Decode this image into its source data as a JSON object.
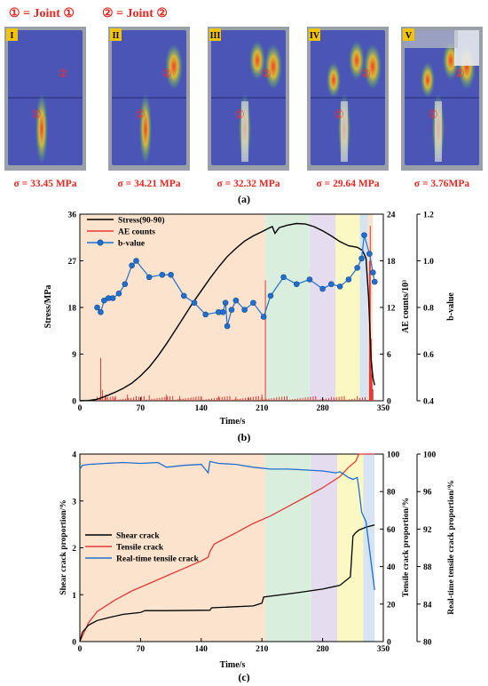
{
  "panel_a": {
    "legend": {
      "joint1": "① = Joint ①",
      "joint2": "② = Joint ②"
    },
    "label": "(a)",
    "photos": [
      {
        "roman": "I",
        "stress": "σ = 33.45 MPa",
        "cracks": 1
      },
      {
        "roman": "II",
        "stress": "σ = 34.21 MPa",
        "cracks": 2
      },
      {
        "roman": "III",
        "stress": "σ = 32.32 MPa",
        "cracks": 3
      },
      {
        "roman": "IV",
        "stress": "σ = 29.64 MPa",
        "cracks": 4
      },
      {
        "roman": "V",
        "stress": "σ = 3.76MPa",
        "cracks": 5
      }
    ],
    "marker1": "①",
    "marker2": "②",
    "colors": {
      "specimen": "#4a55b5",
      "background": "#9aa0a8",
      "label_box": "#f2c300",
      "stress_text": "#e8251f"
    }
  },
  "panel_b": {
    "label": "(b)",
    "chart_data": {
      "type": "line",
      "xlabel": "Time/s",
      "ylabel_left": "Stress/MPa",
      "ylabel_right1": "AE counts/10³",
      "ylabel_right2": "b-value",
      "xlim": [
        0,
        350
      ],
      "xticks": [
        "0",
        "70",
        "140",
        "210",
        "280",
        "350"
      ],
      "ylim_left": [
        0,
        36
      ],
      "yticks_left": [
        "0",
        "9",
        "18",
        "27",
        "36"
      ],
      "ylim_right1": [
        0,
        24
      ],
      "yticks_right1": [
        "0",
        "6",
        "12",
        "18",
        "24"
      ],
      "ylim_right2": [
        0.4,
        1.2
      ],
      "yticks_right2": [
        "0.4",
        "0.6",
        "0.8",
        "1.0",
        "1.2"
      ],
      "legend": [
        "Stress(90-90)",
        "AE counts",
        "b-value"
      ],
      "colors": {
        "stress": "#000000",
        "ae": "#e53935",
        "bvalue": "#1f6fd1"
      },
      "stage_bands": [
        {
          "from": 0,
          "to": 214,
          "color": "#fbe3cd"
        },
        {
          "from": 214,
          "to": 265,
          "color": "#d9eedc"
        },
        {
          "from": 265,
          "to": 295,
          "color": "#e5ddef"
        },
        {
          "from": 295,
          "to": 323,
          "color": "#fbf8c4"
        },
        {
          "from": 323,
          "to": 332,
          "color": "#d5e3f2"
        },
        {
          "from": 332,
          "to": 338,
          "color": "#fbe3cd"
        }
      ],
      "stress": {
        "x": [
          0,
          10,
          20,
          30,
          40,
          50,
          60,
          70,
          80,
          90,
          100,
          110,
          120,
          130,
          140,
          150,
          160,
          170,
          180,
          190,
          200,
          210,
          218,
          222,
          225,
          230,
          240,
          250,
          260,
          270,
          280,
          290,
          300,
          310,
          320,
          326,
          330,
          333,
          336,
          338,
          340
        ],
        "y": [
          0,
          0.05,
          0.3,
          0.9,
          1.6,
          2.4,
          3.4,
          4.8,
          6.5,
          8.6,
          11.0,
          13.6,
          16.2,
          18.8,
          21.2,
          23.6,
          25.8,
          27.8,
          29.4,
          30.8,
          31.8,
          32.6,
          33.3,
          33.6,
          32.3,
          33.4,
          33.9,
          34.2,
          34.1,
          33.6,
          32.8,
          31.8,
          30.7,
          29.9,
          29.6,
          29.0,
          27.5,
          20.0,
          8.0,
          4.5,
          3.0
        ]
      },
      "bvalue": {
        "x": [
          20,
          24,
          28,
          33,
          38,
          45,
          52,
          60,
          65,
          80,
          95,
          105,
          120,
          132,
          145,
          160,
          165,
          168,
          170,
          175,
          180,
          190,
          200,
          212,
          220,
          235,
          250,
          265,
          280,
          290,
          300,
          310,
          320,
          325,
          328,
          334,
          338,
          340
        ],
        "y": [
          0.8,
          0.78,
          0.83,
          0.84,
          0.84,
          0.86,
          0.9,
          0.98,
          1.0,
          0.93,
          0.94,
          0.94,
          0.85,
          0.82,
          0.77,
          0.78,
          0.78,
          0.82,
          0.72,
          0.79,
          0.83,
          0.79,
          0.82,
          0.76,
          0.85,
          0.93,
          0.9,
          0.92,
          0.88,
          0.9,
          0.89,
          0.92,
          0.97,
          1.01,
          1.11,
          1.03,
          0.95,
          0.91
        ]
      },
      "ae": {
        "x": [
          20,
          24,
          26,
          30,
          40,
          55,
          65,
          80,
          100,
          115,
          140,
          160,
          180,
          195,
          210,
          214,
          230,
          260,
          290,
          320,
          334,
          335,
          336,
          337,
          338
        ],
        "y": [
          0.5,
          5.5,
          1.4,
          0.8,
          0.4,
          0.8,
          0.6,
          0.7,
          0.8,
          0.6,
          0.5,
          0.6,
          0.5,
          0.4,
          0.8,
          15.5,
          0.5,
          0.4,
          0.5,
          0.6,
          18.0,
          22.5,
          8.0,
          3.5,
          1.5
        ]
      }
    }
  },
  "panel_c": {
    "label": "(c)",
    "chart_data": {
      "type": "line",
      "xlabel": "Time/s",
      "ylabel_left": "Shear crack proportion/%",
      "ylabel_right1": "Tensile crack proportion/%",
      "ylabel_right2": "Real-time tensile crack proportion/%",
      "xlim": [
        0,
        350
      ],
      "xticks": [
        "0",
        "70",
        "140",
        "210",
        "280",
        "350"
      ],
      "ylim_left": [
        0,
        4
      ],
      "yticks_left": [
        "0",
        "1",
        "2",
        "3",
        "4"
      ],
      "ylim_right1": [
        0,
        100
      ],
      "yticks_right1": [
        "0",
        "20",
        "40",
        "60",
        "80",
        "100"
      ],
      "ylim_right2": [
        80,
        100
      ],
      "yticks_right2": [
        "80",
        "84",
        "88",
        "92",
        "96",
        "100"
      ],
      "legend": [
        "Shear crack",
        "Tensile crack",
        "Real-time tensile crack"
      ],
      "colors": {
        "shear": "#000000",
        "tensile": "#e53935",
        "realtime": "#1f6fd1"
      },
      "stage_bands": [
        {
          "from": 0,
          "to": 214,
          "color": "#fbe3cd"
        },
        {
          "from": 214,
          "to": 267,
          "color": "#d9eedc"
        },
        {
          "from": 267,
          "to": 297,
          "color": "#e5ddef"
        },
        {
          "from": 297,
          "to": 327,
          "color": "#fbf8c4"
        },
        {
          "from": 327,
          "to": 340,
          "color": "#d5e3f2"
        }
      ],
      "shear": {
        "x": [
          0,
          3,
          10,
          20,
          35,
          50,
          70,
          75,
          100,
          150,
          152,
          200,
          210,
          212,
          250,
          280,
          300,
          308,
          312,
          315,
          318,
          322,
          330,
          340
        ],
        "y": [
          0,
          0.2,
          0.35,
          0.45,
          0.52,
          0.58,
          0.62,
          0.66,
          0.66,
          0.67,
          0.72,
          0.76,
          0.82,
          0.95,
          1.04,
          1.12,
          1.2,
          1.32,
          1.38,
          2.25,
          2.32,
          2.38,
          2.44,
          2.49
        ]
      },
      "tensile": {
        "x": [
          0,
          5,
          10,
          20,
          40,
          60,
          80,
          100,
          120,
          140,
          148,
          150,
          155,
          180,
          200,
          220,
          240,
          260,
          280,
          300,
          310,
          318,
          322,
          325,
          330,
          340
        ],
        "y": [
          0,
          5,
          10,
          16,
          22,
          27,
          31,
          35,
          39,
          43,
          45,
          48,
          52,
          58,
          63,
          67,
          72,
          77,
          82,
          88,
          93,
          96,
          100,
          100,
          100,
          100
        ]
      },
      "realtime": {
        "x": [
          0,
          3,
          10,
          30,
          50,
          70,
          90,
          100,
          120,
          140,
          148,
          150,
          160,
          180,
          200,
          220,
          240,
          260,
          280,
          295,
          300,
          305,
          310,
          315,
          320,
          322,
          325,
          330,
          340
        ],
        "y": [
          98.4,
          98.8,
          98.9,
          99.0,
          99.1,
          99.0,
          99.1,
          98.6,
          98.8,
          98.9,
          98.0,
          99.2,
          99.0,
          98.9,
          98.6,
          98.4,
          98.4,
          98.3,
          98.2,
          98.0,
          98.1,
          97.8,
          97.5,
          97.3,
          97.5,
          96.2,
          93.8,
          92.8,
          85.5
        ]
      }
    }
  }
}
